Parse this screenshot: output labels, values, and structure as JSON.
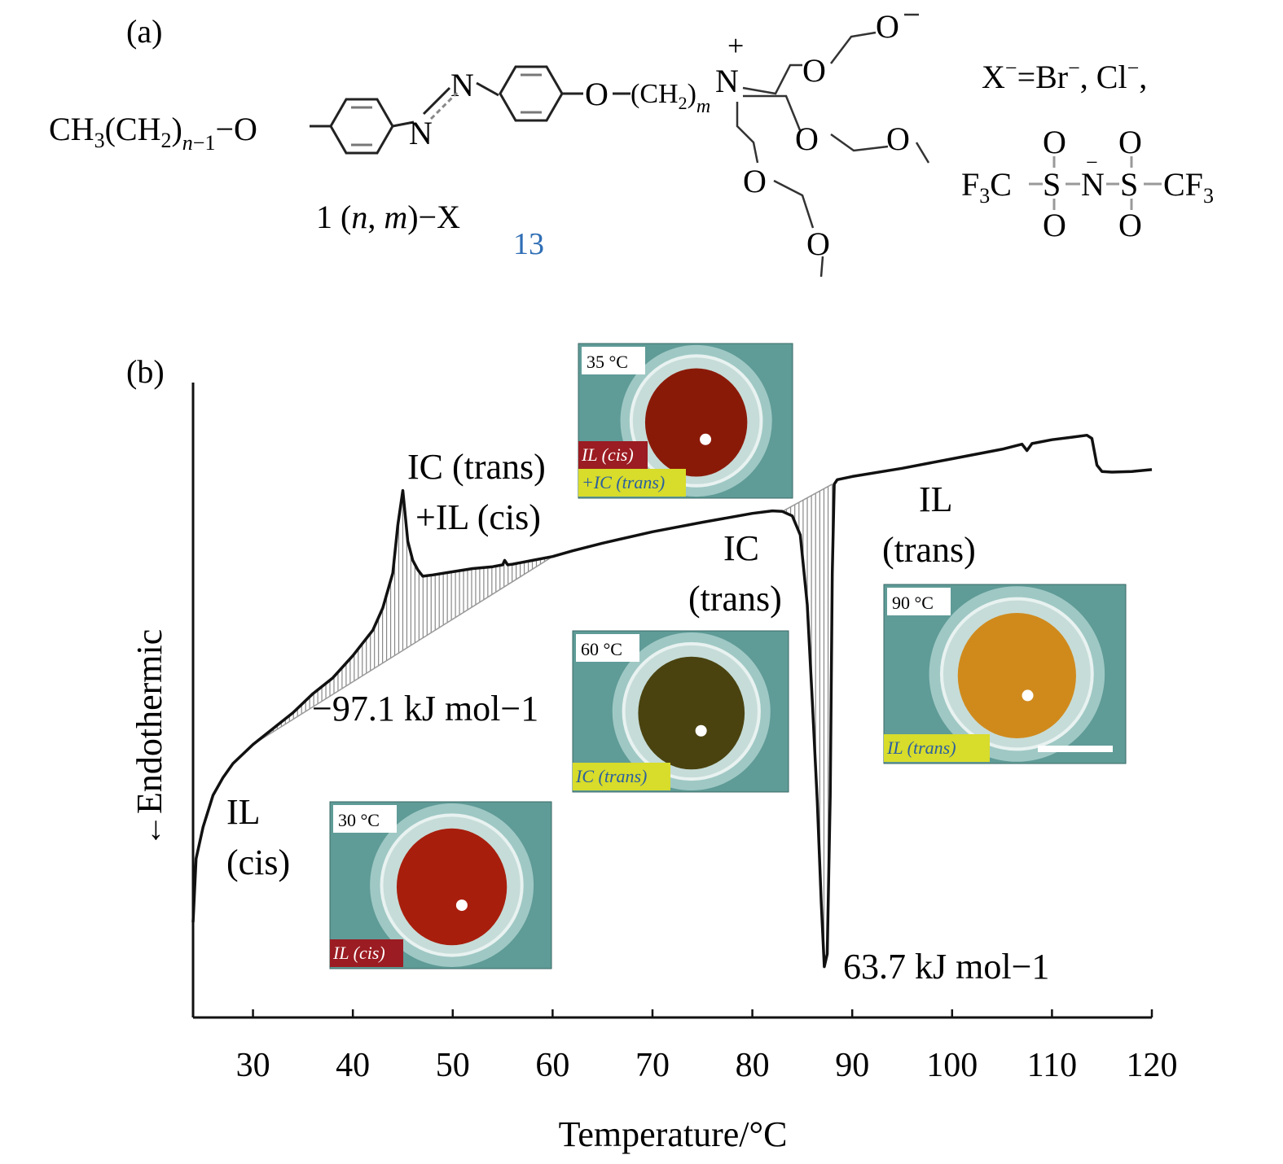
{
  "panel_a": {
    "label": "(a)",
    "compound_label": "1 (n, m)−X",
    "compound_label_parts": {
      "num": "1 (",
      "n": "n",
      "comma": ", ",
      "m": "m",
      "suffix": ")−X"
    },
    "ref_number": "13",
    "ref_color": "#2f6eb5",
    "tail_group": "CH3(CH2)n−1−O",
    "azo_atom": "N",
    "oxygen_atom": "O",
    "spacer": "(CH2)m",
    "nitrogen_cation": "N",
    "charge_plus": "+",
    "counterions_line": "X−=Br−, Cl−,",
    "tfsi_left": "F3C",
    "tfsi_right": "CF3",
    "tfsi_s": "S",
    "tfsi_n": "N",
    "tfsi_o": "O",
    "tfsi_minus": "−"
  },
  "panel_b": {
    "label": "(b)",
    "annotations": {
      "il_cis_1": "IL",
      "il_cis_2": "(cis)",
      "mixed_1": "IC (trans)",
      "mixed_2": "+IL (cis)",
      "ic_trans_1": "IC",
      "ic_trans_2": "(trans)",
      "il_trans_1": "IL",
      "il_trans_2": "(trans)",
      "exo_enthalpy": "−97.1 kJ mol−1",
      "endo_enthalpy": "63.7 kJ mol−1"
    },
    "photos": [
      {
        "temp": "30 °C",
        "tag": "IL (cis)",
        "tag_color": "#9b1c22",
        "fill": "#a81e0c"
      },
      {
        "temp": "35 °C",
        "tag_1": "IL (cis)",
        "tag_2": "+IC (trans)",
        "tag_color_1": "#9b1c22",
        "tag_color_2": "#d8dc2a",
        "fill": "#8a1a08"
      },
      {
        "temp": "60 °C",
        "tag": "IC (trans)",
        "tag_color": "#d8dc2a",
        "fill": "#4a4310"
      },
      {
        "temp": "90 °C",
        "tag": "IL (trans)",
        "tag_color": "#d8dc2a",
        "fill": "#d08a1c"
      }
    ]
  },
  "chart_data": {
    "type": "line",
    "xlabel": "Temperature/°C",
    "ylabel": "Endothermic",
    "ylabel_arrow": "←",
    "xlim": [
      24,
      120
    ],
    "xticks": [
      30,
      40,
      50,
      60,
      70,
      80,
      90,
      100,
      110,
      120
    ],
    "y_units": "arbitrary",
    "ylim": [
      0,
      100
    ],
    "grid": false,
    "legend": "none",
    "series": [
      {
        "x": [
          24.0,
          24.3,
          25.0,
          26.0,
          27.0,
          28.0,
          30.0,
          32.0,
          34.0,
          36.0,
          38.0,
          40.0,
          42.0,
          43.0,
          44.0,
          44.5,
          45.0,
          45.5,
          46.0,
          46.5,
          47.0,
          48.0,
          50.0,
          52.0,
          54.0,
          55.0,
          55.2,
          55.5,
          56.0,
          58.0,
          60.0,
          62.0,
          65.0,
          70.0,
          75.0,
          80.0,
          82.0,
          83.0,
          84.0,
          84.8,
          85.5,
          86.0,
          86.5,
          86.9,
          87.2,
          87.5,
          87.8,
          88.0,
          88.2,
          88.5,
          90.0,
          95.0,
          100.0,
          105.0,
          107.0,
          107.5,
          108.0,
          110.0,
          112.0,
          113.5,
          114.0,
          114.5,
          115.0,
          116.0,
          118.0,
          120.0
        ],
        "y": [
          15.0,
          25.0,
          30.0,
          35.0,
          37.8,
          40.0,
          43.0,
          45.5,
          48.0,
          51.0,
          53.5,
          57.0,
          61.0,
          64.5,
          70.0,
          77.5,
          83.0,
          75.0,
          72.0,
          70.5,
          69.5,
          69.7,
          70.2,
          70.7,
          71.0,
          71.3,
          72.0,
          71.3,
          71.4,
          72.0,
          72.6,
          73.5,
          74.7,
          76.5,
          78.0,
          79.4,
          79.8,
          79.7,
          79.0,
          76.0,
          65.0,
          50.0,
          34.0,
          18.0,
          8.0,
          10.0,
          35.0,
          70.0,
          84.0,
          84.7,
          85.2,
          86.5,
          88.0,
          89.5,
          90.3,
          89.3,
          90.4,
          91.0,
          91.4,
          91.7,
          91.2,
          87.0,
          86.0,
          85.9,
          86.0,
          86.3
        ]
      }
    ],
    "shaded_regions": [
      {
        "x_from": 30.0,
        "x_to": 60.0,
        "baseline_y": [
          43.0,
          72.6
        ]
      },
      {
        "x_from": 83.0,
        "x_to": 88.0,
        "baseline_y": [
          79.7,
          84.0
        ]
      }
    ]
  }
}
